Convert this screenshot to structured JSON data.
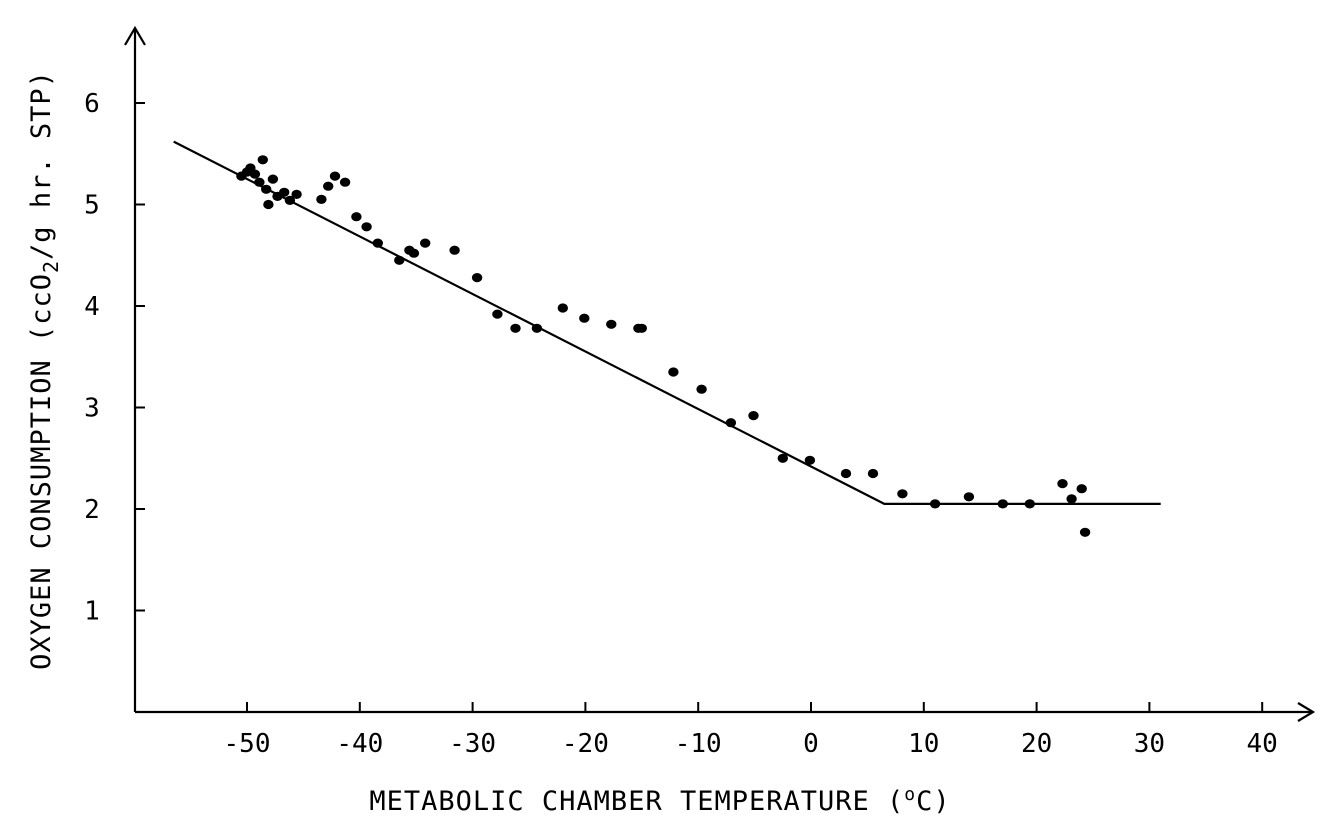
{
  "chart_data": {
    "type": "scatter",
    "title": "",
    "xlabel_main": "METABOLIC CHAMBER TEMPERATURE (",
    "xlabel_deg": "o",
    "xlabel_unit": "C)",
    "ylabel_main": "OXYGEN CONSUMPTION (ccO",
    "ylabel_sub": "2",
    "ylabel_mid": "/g",
    "ylabel_end": " hr. STP)",
    "xlim": [
      -60,
      45
    ],
    "ylim": [
      0,
      7
    ],
    "x_ticks": [
      -50,
      -40,
      -30,
      -20,
      -10,
      0,
      10,
      20,
      30,
      40
    ],
    "x_tick_labels": [
      "-50",
      "-40",
      "-30",
      "-20",
      "-10",
      "0",
      "10",
      "20",
      "30",
      "40"
    ],
    "y_ticks": [
      1,
      2,
      3,
      4,
      5,
      6
    ],
    "y_tick_labels": [
      "1",
      "2",
      "3",
      "4",
      "5",
      "6"
    ],
    "grid": false,
    "legend": "none",
    "fit_line": [
      [
        -56.5,
        5.62
      ],
      [
        6.5,
        2.05
      ],
      [
        31,
        2.05
      ]
    ],
    "points": [
      [
        -50.5,
        5.28
      ],
      [
        -50,
        5.32
      ],
      [
        -49.7,
        5.36
      ],
      [
        -49.3,
        5.3
      ],
      [
        -48.9,
        5.22
      ],
      [
        -48.6,
        5.44
      ],
      [
        -48.3,
        5.15
      ],
      [
        -48.1,
        5.0
      ],
      [
        -47.7,
        5.25
      ],
      [
        -47.3,
        5.08
      ],
      [
        -46.7,
        5.12
      ],
      [
        -46.2,
        5.04
      ],
      [
        -45.6,
        5.1
      ],
      [
        -43.4,
        5.05
      ],
      [
        -42.8,
        5.18
      ],
      [
        -42.2,
        5.28
      ],
      [
        -41.3,
        5.22
      ],
      [
        -40.3,
        4.88
      ],
      [
        -39.4,
        4.78
      ],
      [
        -38.4,
        4.62
      ],
      [
        -36.5,
        4.45
      ],
      [
        -35.6,
        4.55
      ],
      [
        -35.2,
        4.52
      ],
      [
        -34.2,
        4.62
      ],
      [
        -31.6,
        4.55
      ],
      [
        -29.6,
        4.28
      ],
      [
        -27.8,
        3.92
      ],
      [
        -26.2,
        3.78
      ],
      [
        -24.3,
        3.78
      ],
      [
        -22.0,
        3.98
      ],
      [
        -20.1,
        3.88
      ],
      [
        -17.7,
        3.82
      ],
      [
        -15.3,
        3.78
      ],
      [
        -15.0,
        3.78
      ],
      [
        -12.2,
        3.35
      ],
      [
        -9.7,
        3.18
      ],
      [
        -7.1,
        2.85
      ],
      [
        -5.1,
        2.92
      ],
      [
        -2.5,
        2.5
      ],
      [
        -0.1,
        2.48
      ],
      [
        3.1,
        2.35
      ],
      [
        5.5,
        2.35
      ],
      [
        8.1,
        2.15
      ],
      [
        11.0,
        2.05
      ],
      [
        14.0,
        2.12
      ],
      [
        17.0,
        2.05
      ],
      [
        19.4,
        2.05
      ],
      [
        22.3,
        2.25
      ],
      [
        23.1,
        2.1
      ],
      [
        24.0,
        2.2
      ],
      [
        24.3,
        1.77
      ]
    ]
  }
}
